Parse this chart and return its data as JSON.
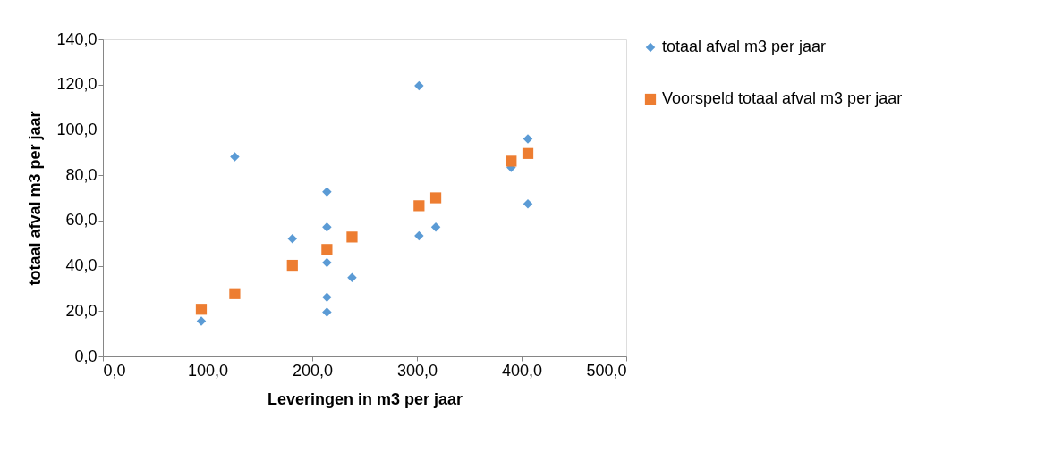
{
  "chart_data": {
    "type": "scatter",
    "xlabel": "Leveringen in m3 per jaar",
    "ylabel": "totaal afval m3 per jaar",
    "xlim": [
      0,
      500
    ],
    "ylim": [
      0,
      140
    ],
    "xticks": [
      {
        "value": 0,
        "label": "0,0"
      },
      {
        "value": 100,
        "label": "100,0"
      },
      {
        "value": 200,
        "label": "200,0"
      },
      {
        "value": 300,
        "label": "300,0"
      },
      {
        "value": 400,
        "label": "400,0"
      },
      {
        "value": 500,
        "label": "500,0"
      }
    ],
    "yticks": [
      {
        "value": 0,
        "label": "0,0"
      },
      {
        "value": 20,
        "label": "20,0"
      },
      {
        "value": 40,
        "label": "40,0"
      },
      {
        "value": 60,
        "label": "60,0"
      },
      {
        "value": 80,
        "label": "80,0"
      },
      {
        "value": 100,
        "label": "100,0"
      },
      {
        "value": 120,
        "label": "120,0"
      },
      {
        "value": 140,
        "label": "140,0"
      }
    ],
    "grid": false,
    "legend": "right",
    "series": [
      {
        "name": "totaal afval m3 per jaar",
        "color": "#5b9bd5",
        "marker": "diamond",
        "x": [
          94,
          126,
          181,
          214,
          214,
          214,
          214,
          214,
          238,
          302,
          302,
          318,
          390,
          406,
          406
        ],
        "values": [
          15.6,
          88.1,
          52.0,
          72.7,
          57.1,
          41.4,
          26.1,
          19.5,
          34.8,
          119.5,
          53.2,
          57.1,
          83.4,
          96.0,
          67.3
        ]
      },
      {
        "name": "Voorspeld totaal afval m3 per jaar",
        "color": "#ed7d31",
        "marker": "square",
        "x": [
          94,
          126,
          181,
          214,
          238,
          302,
          318,
          390,
          406
        ],
        "values": [
          20.8,
          27.7,
          40.2,
          47.2,
          52.7,
          66.5,
          70.0,
          86.2,
          89.6
        ]
      }
    ]
  }
}
